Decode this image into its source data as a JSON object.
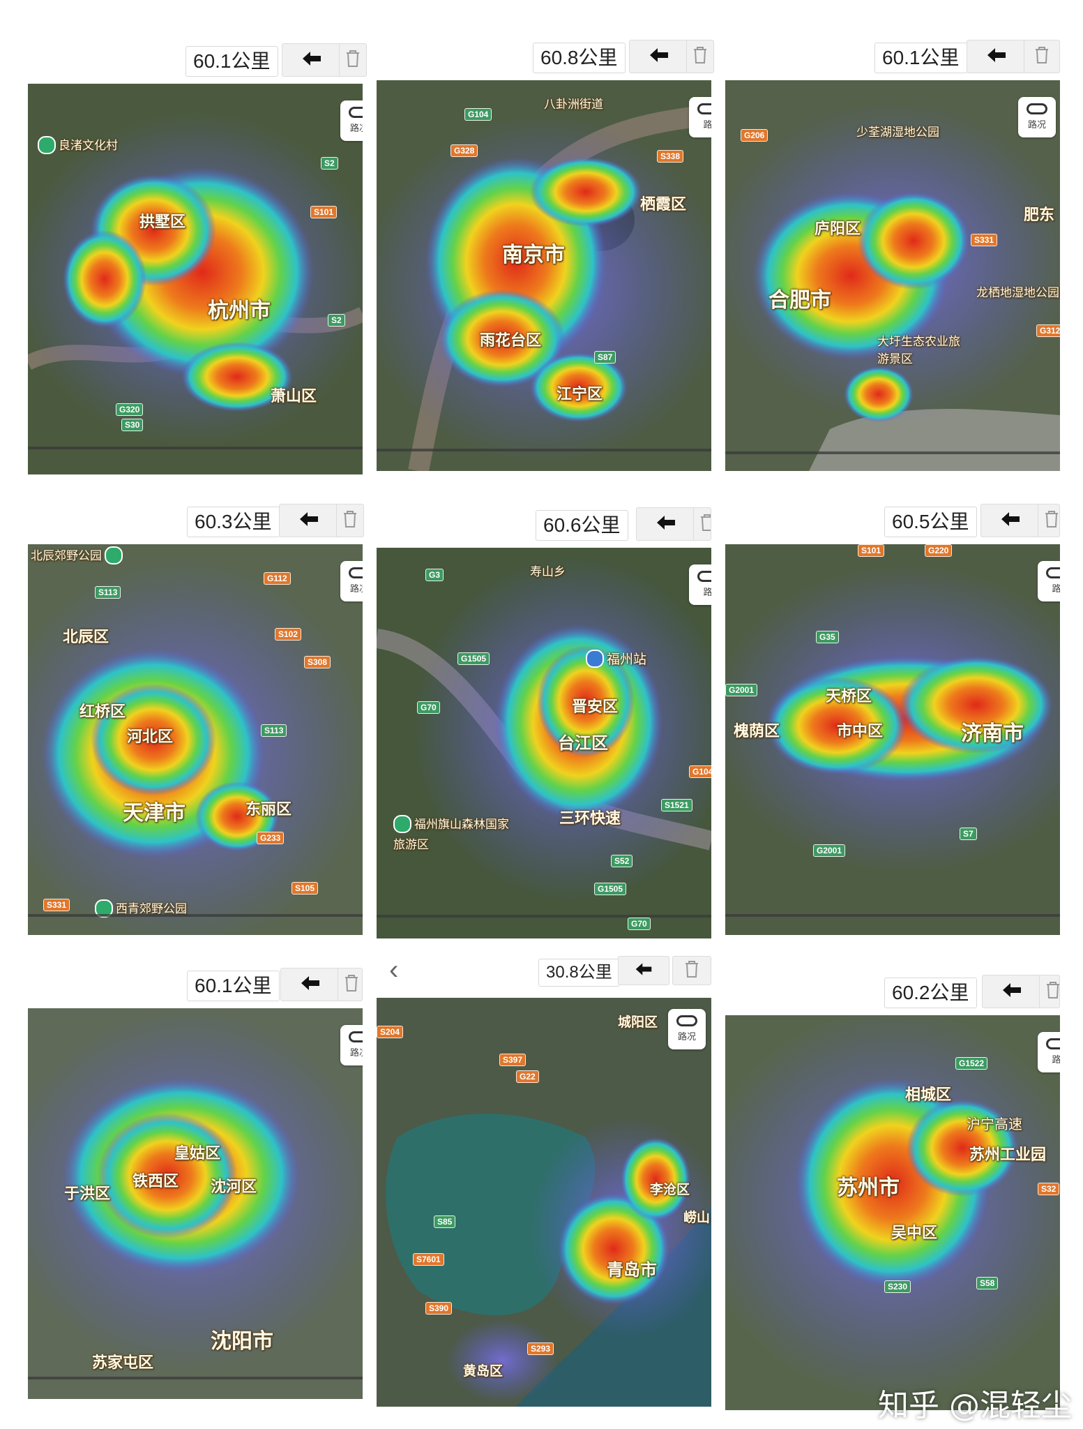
{
  "panels": [
    {
      "distance": "60.1公里",
      "city": "杭州市",
      "districts": [
        "拱墅区",
        "萧山区"
      ],
      "pois": [
        "良渚文化村"
      ],
      "roads": [
        "G320",
        "S30",
        "S2",
        "S101",
        "S2"
      ],
      "traffic": "路况",
      "base_color": "#4b5a3e"
    },
    {
      "distance": "60.8公里",
      "city": "南京市",
      "districts": [
        "栖霞区",
        "雨花台区",
        "江宁区"
      ],
      "pois": [
        "八卦洲街道"
      ],
      "roads": [
        "G104",
        "G328",
        "S338",
        "S87"
      ],
      "traffic": "路",
      "base_color": "#4e5c44"
    },
    {
      "distance": "60.1公里",
      "city": "合肥市",
      "districts": [
        "庐阳区",
        "肥东"
      ],
      "pois": [
        "少荃湖湿地公园",
        "龙栖地湿地公园",
        "大圩生态农业旅游景区"
      ],
      "roads": [
        "G206",
        "S331",
        "G312"
      ],
      "traffic": "路况",
      "base_color": "#55614a"
    },
    {
      "distance": "60.3公里",
      "city": "天津市",
      "districts": [
        "北辰区",
        "红桥区",
        "河北区",
        "东丽区"
      ],
      "pois": [
        "北辰郊野公园",
        "西青郊野公园"
      ],
      "roads": [
        "G112",
        "S113",
        "S102",
        "S308",
        "S113",
        "G233",
        "S105",
        "S331"
      ],
      "traffic": "路况",
      "base_color": "#5a6650"
    },
    {
      "distance": "60.6公里",
      "city": "台江区",
      "districts": [
        "晋安区",
        "三环快速"
      ],
      "pois": [
        "寿山乡",
        "福州站",
        "福州旗山森林国家旅游区"
      ],
      "roads": [
        "G3",
        "G1505",
        "G70",
        "G104",
        "S1521",
        "S52",
        "G1505",
        "G70"
      ],
      "traffic": "路",
      "base_color": "#46573c"
    },
    {
      "distance": "60.5公里",
      "city": "济南市",
      "districts": [
        "天桥区",
        "槐荫区",
        "市中区"
      ],
      "pois": [],
      "roads": [
        "S101",
        "G220",
        "G35",
        "G2001",
        "S7",
        "G2001"
      ],
      "traffic": "路",
      "base_color": "#505d45"
    },
    {
      "distance": "60.1公里",
      "city": "沈阳市",
      "districts": [
        "皇姑区",
        "铁西区",
        "于洪区",
        "沈河区",
        "苏家屯区"
      ],
      "pois": [],
      "roads": [],
      "traffic": "路况",
      "base_color": "#5f6a58"
    },
    {
      "distance": "30.8公里",
      "city": "青岛市",
      "districts": [
        "城阳区",
        "李沧区",
        "崂山",
        "黄岛区"
      ],
      "pois": [],
      "roads": [
        "S204",
        "S397",
        "G22",
        "S85",
        "S7601",
        "S390",
        "S293"
      ],
      "traffic": "路况",
      "back_label": "‹",
      "base_color": "#4d5a48"
    },
    {
      "distance": "60.2公里",
      "city": "苏州市",
      "districts": [
        "相城区",
        "吴中区",
        "苏州工业园"
      ],
      "pois": [
        "沪宁高速"
      ],
      "roads": [
        "G1522",
        "S230",
        "S58",
        "S32"
      ],
      "traffic": "路",
      "base_color": "#58654d"
    }
  ],
  "watermark": "知乎 @混轻尘",
  "icons": {
    "back": "arrow-left-icon",
    "trash": "trash-icon",
    "traffic": "traffic-icon"
  },
  "heat_colors": [
    "#5a5ee0",
    "#2ec2c8",
    "#63d24a",
    "#f0d21e",
    "#ee7a1c",
    "#e02a1a"
  ]
}
